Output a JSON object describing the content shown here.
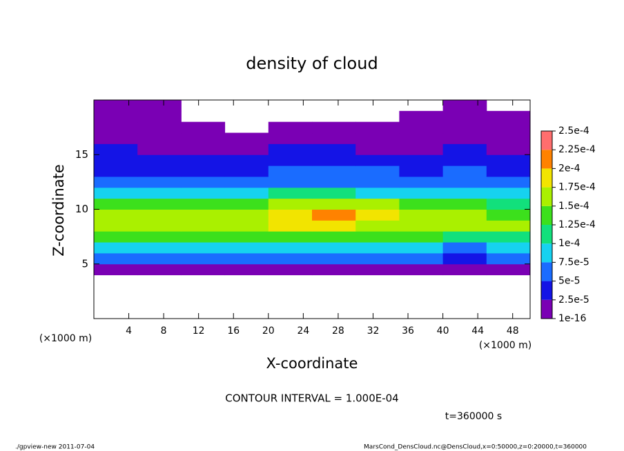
{
  "chart_data": {
    "type": "heatmap",
    "title": "density of cloud",
    "xlabel": "X-coordinate",
    "ylabel": "Z-coordinate",
    "x_unit": "(×1000 m)",
    "x_unit_right": "(×1000 m)",
    "contour_note": "CONTOUR INTERVAL = 1.000E-04",
    "time_note": "t=360000 s",
    "footer_left": "./gpview-new  2011-07-04",
    "footer_right": "MarsCond_DensCloud.nc@DensCloud,x=0:50000,z=0:20000,t=360000",
    "xlim": [
      0,
      50
    ],
    "ylim": [
      0,
      20
    ],
    "xticks": [
      4,
      8,
      12,
      16,
      20,
      24,
      28,
      32,
      36,
      40,
      44,
      48
    ],
    "yticks": [
      5,
      10,
      15
    ],
    "x_bins": [
      0,
      5,
      10,
      15,
      20,
      25,
      30,
      35,
      40,
      45,
      50
    ],
    "z_bins": [
      0,
      1,
      2,
      3,
      4,
      5,
      6,
      7,
      8,
      9,
      10,
      11,
      12,
      13,
      14,
      15,
      16,
      17,
      18,
      19,
      20
    ],
    "values": [
      [
        null,
        null,
        null,
        null,
        null,
        null,
        null,
        null,
        null,
        null
      ],
      [
        null,
        null,
        null,
        null,
        null,
        null,
        null,
        null,
        null,
        null
      ],
      [
        null,
        null,
        null,
        null,
        null,
        null,
        null,
        null,
        null,
        null
      ],
      [
        null,
        null,
        null,
        null,
        null,
        null,
        null,
        null,
        null,
        null
      ],
      [
        1e-05,
        1e-05,
        1e-05,
        1e-05,
        1e-05,
        1e-05,
        1e-05,
        1e-05,
        1e-05,
        1e-05
      ],
      [
        5e-05,
        5e-05,
        5e-05,
        5e-05,
        5e-05,
        5e-05,
        5e-05,
        5e-05,
        3e-05,
        5e-05
      ],
      [
        9e-05,
        9e-05,
        9e-05,
        9e-05,
        9e-05,
        9e-05,
        9e-05,
        9e-05,
        7e-05,
        8e-05
      ],
      [
        0.00013,
        0.00013,
        0.00013,
        0.00013,
        0.00014,
        0.00014,
        0.00013,
        0.00013,
        0.00012,
        0.00012
      ],
      [
        0.00016,
        0.00017,
        0.00016,
        0.00016,
        0.00018,
        0.00018,
        0.00017,
        0.00016,
        0.00015,
        0.00015
      ],
      [
        0.00016,
        0.00017,
        0.00016,
        0.00017,
        0.00019,
        0.0002,
        0.00018,
        0.00016,
        0.00015,
        0.00014
      ],
      [
        0.00013,
        0.00013,
        0.00013,
        0.00014,
        0.00016,
        0.00017,
        0.00015,
        0.00013,
        0.00013,
        0.00012
      ],
      [
        9e-05,
        9e-05,
        9e-05,
        9e-05,
        0.0001,
        0.0001,
        9e-05,
        9e-05,
        9e-05,
        8e-05
      ],
      [
        6e-05,
        6e-05,
        6e-05,
        6e-05,
        7e-05,
        7e-05,
        6e-05,
        6e-05,
        7e-05,
        6e-05
      ],
      [
        4e-05,
        4e-05,
        4e-05,
        4e-05,
        5e-05,
        5e-05,
        5e-05,
        4e-05,
        5e-05,
        4e-05
      ],
      [
        3e-05,
        3e-05,
        3e-05,
        3e-05,
        4e-05,
        4e-05,
        3e-05,
        3e-05,
        4e-05,
        3e-05
      ],
      [
        2.5e-05,
        2e-05,
        2e-05,
        2e-05,
        2.5e-05,
        2.5e-05,
        2e-05,
        2e-05,
        2.5e-05,
        2e-05
      ],
      [
        1.5e-05,
        1.2e-05,
        1e-05,
        1e-05,
        1.5e-05,
        1.5e-05,
        1e-05,
        1e-05,
        1.5e-05,
        1e-05
      ],
      [
        8e-06,
        6e-06,
        5e-06,
        null,
        5e-06,
        8e-06,
        5e-06,
        5e-06,
        8e-06,
        5e-06
      ],
      [
        5e-06,
        5e-06,
        null,
        null,
        null,
        null,
        null,
        5e-06,
        5e-06,
        5e-06
      ],
      [
        3e-06,
        3e-06,
        null,
        null,
        null,
        null,
        null,
        null,
        3e-06,
        null
      ]
    ],
    "colorbar_ticks": [
      1e-16,
      {
        "value": 2.5e-05,
        "label": "2.5e-5"
      },
      {
        "value": 5e-05,
        "label": "5e-5"
      },
      {
        "value": 7.5e-05,
        "label": "7.5e-5"
      },
      {
        "value": 0.0001,
        "label": "1e-4"
      },
      {
        "value": 0.000125,
        "label": "1.25e-4"
      },
      {
        "value": 0.00015,
        "label": "1.5e-4"
      },
      {
        "value": 0.000175,
        "label": "1.75e-4"
      },
      {
        "value": 0.0002,
        "label": "2e-4"
      },
      {
        "value": 0.000225,
        "label": "2.25e-4"
      },
      {
        "value": 0.00025,
        "label": "2.5e-4"
      }
    ],
    "colors": [
      "#7a00b4",
      "#1414e6",
      "#1a6cff",
      "#16d2f0",
      "#12e07c",
      "#3ce01c",
      "#aaf000",
      "#f2e400",
      "#ff8200",
      "#ff6e6e"
    ]
  }
}
